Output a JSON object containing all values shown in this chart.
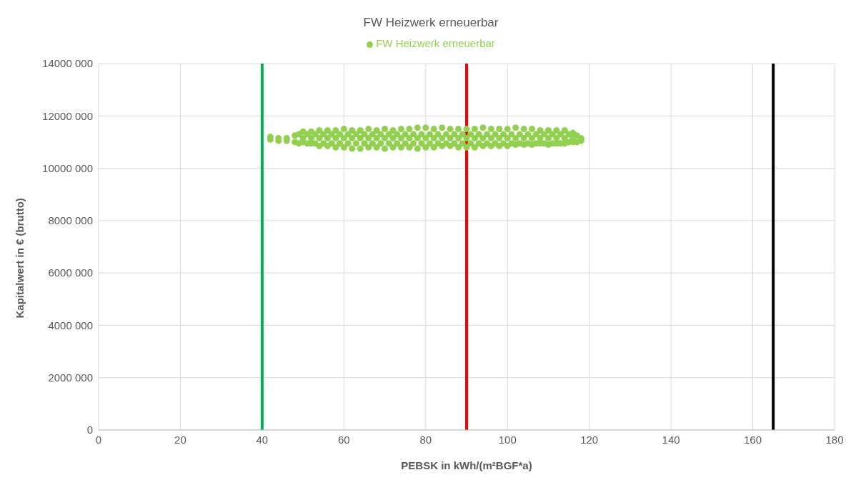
{
  "chart_data": {
    "type": "scatter",
    "title": "FW Heizwerk erneuerbar",
    "xlabel": "PEBSK in kWh/(m²BGF*a)",
    "ylabel": "Kapitalwert in € (brutto)",
    "xlim": [
      0,
      180
    ],
    "xticks": [
      0,
      20,
      40,
      60,
      80,
      100,
      120,
      140,
      160,
      180
    ],
    "ylim": [
      0,
      14000000
    ],
    "yticks": [
      0,
      {
        "value": 2000000,
        "label": "2000 000"
      },
      {
        "value": 4000000,
        "label": "4000 000"
      },
      {
        "value": 6000000,
        "label": "6000 000"
      },
      {
        "value": 8000000,
        "label": "8000 000"
      },
      {
        "value": 10000000,
        "label": "10000 000"
      },
      {
        "value": 12000000,
        "label": "12000 000"
      },
      {
        "value": 14000000,
        "label": "14000 000"
      }
    ],
    "grid": true,
    "legend": "top",
    "marker": "circle",
    "ref_lines": [
      {
        "axis": "x",
        "value": 40,
        "color": "#00b050"
      },
      {
        "axis": "x",
        "value": 90,
        "color": "#ff0000"
      },
      {
        "axis": "x",
        "value": 165,
        "color": "#000000"
      }
    ],
    "series": [
      {
        "name": "FW Heizwerk erneuerbar",
        "color": "#92d050",
        "x": [
          42,
          42,
          44,
          44,
          46,
          46,
          48,
          48,
          49,
          49,
          50,
          50,
          50,
          51,
          51,
          52,
          52,
          52,
          53,
          53,
          54,
          54,
          54,
          55,
          55,
          56,
          56,
          56,
          57,
          57,
          58,
          58,
          58,
          59,
          59,
          60,
          60,
          60,
          61,
          61,
          62,
          62,
          62,
          63,
          63,
          64,
          64,
          64,
          65,
          65,
          66,
          66,
          66,
          67,
          67,
          68,
          68,
          68,
          69,
          69,
          70,
          70,
          70,
          71,
          71,
          72,
          72,
          72,
          73,
          73,
          74,
          74,
          74,
          75,
          75,
          76,
          76,
          76,
          77,
          77,
          78,
          78,
          78,
          79,
          79,
          80,
          80,
          80,
          81,
          81,
          82,
          82,
          82,
          83,
          83,
          84,
          84,
          84,
          85,
          85,
          86,
          86,
          86,
          87,
          87,
          88,
          88,
          88,
          89,
          89,
          90,
          90,
          90,
          91,
          91,
          92,
          92,
          92,
          93,
          93,
          94,
          94,
          94,
          95,
          95,
          96,
          96,
          96,
          97,
          97,
          98,
          98,
          98,
          99,
          99,
          100,
          100,
          100,
          101,
          101,
          102,
          102,
          102,
          103,
          103,
          104,
          104,
          104,
          105,
          105,
          106,
          106,
          106,
          107,
          107,
          108,
          108,
          108,
          109,
          109,
          110,
          110,
          110,
          111,
          111,
          112,
          112,
          112,
          113,
          113,
          114,
          114,
          114,
          115,
          115,
          116,
          116,
          116,
          117,
          117,
          118,
          118,
          118
        ],
        "values": [
          11200000,
          11100000,
          11150000,
          11050000,
          11150000,
          11050000,
          11250000,
          11000000,
          11300000,
          10950000,
          11400000,
          11150000,
          11000000,
          11300000,
          10950000,
          11400000,
          11150000,
          10950000,
          11300000,
          10950000,
          11450000,
          11150000,
          10850000,
          11300000,
          10950000,
          11450000,
          11150000,
          10850000,
          11300000,
          10950000,
          11450000,
          11150000,
          10800000,
          11300000,
          10950000,
          11500000,
          11150000,
          10800000,
          11300000,
          10950000,
          11450000,
          11150000,
          10750000,
          11300000,
          10950000,
          11450000,
          11150000,
          10750000,
          11300000,
          10950000,
          11500000,
          11150000,
          10800000,
          11300000,
          10950000,
          11450000,
          11150000,
          10800000,
          11300000,
          10950000,
          11500000,
          11150000,
          10750000,
          11300000,
          10950000,
          11450000,
          11150000,
          10800000,
          11300000,
          10950000,
          11500000,
          11150000,
          10800000,
          11300000,
          10950000,
          11500000,
          11150000,
          10800000,
          11300000,
          10950000,
          11550000,
          11150000,
          10750000,
          11300000,
          10950000,
          11550000,
          11150000,
          10800000,
          11300000,
          10950000,
          11500000,
          11150000,
          10800000,
          11300000,
          10950000,
          11550000,
          11150000,
          10850000,
          11300000,
          10950000,
          11500000,
          11150000,
          10850000,
          11300000,
          10950000,
          11500000,
          11150000,
          10800000,
          11300000,
          10950000,
          11500000,
          11150000,
          10800000,
          11300000,
          10950000,
          11500000,
          11150000,
          10800000,
          11300000,
          10950000,
          11550000,
          11150000,
          10850000,
          11300000,
          10950000,
          11500000,
          11150000,
          10850000,
          11300000,
          10950000,
          11500000,
          11150000,
          10850000,
          11300000,
          10950000,
          11500000,
          11150000,
          10850000,
          11300000,
          10950000,
          11550000,
          11150000,
          10900000,
          11300000,
          10950000,
          11500000,
          11150000,
          10900000,
          11300000,
          10950000,
          11500000,
          11150000,
          10900000,
          11300000,
          10950000,
          11450000,
          11150000,
          10950000,
          11300000,
          10950000,
          11450000,
          11150000,
          10900000,
          11300000,
          10950000,
          11450000,
          11150000,
          10950000,
          11300000,
          10950000,
          11450000,
          11150000,
          10950000,
          11300000,
          11000000,
          11350000,
          11150000,
          11000000,
          11250000,
          11000000,
          11150000,
          11100000,
          11050000
        ]
      }
    ]
  }
}
